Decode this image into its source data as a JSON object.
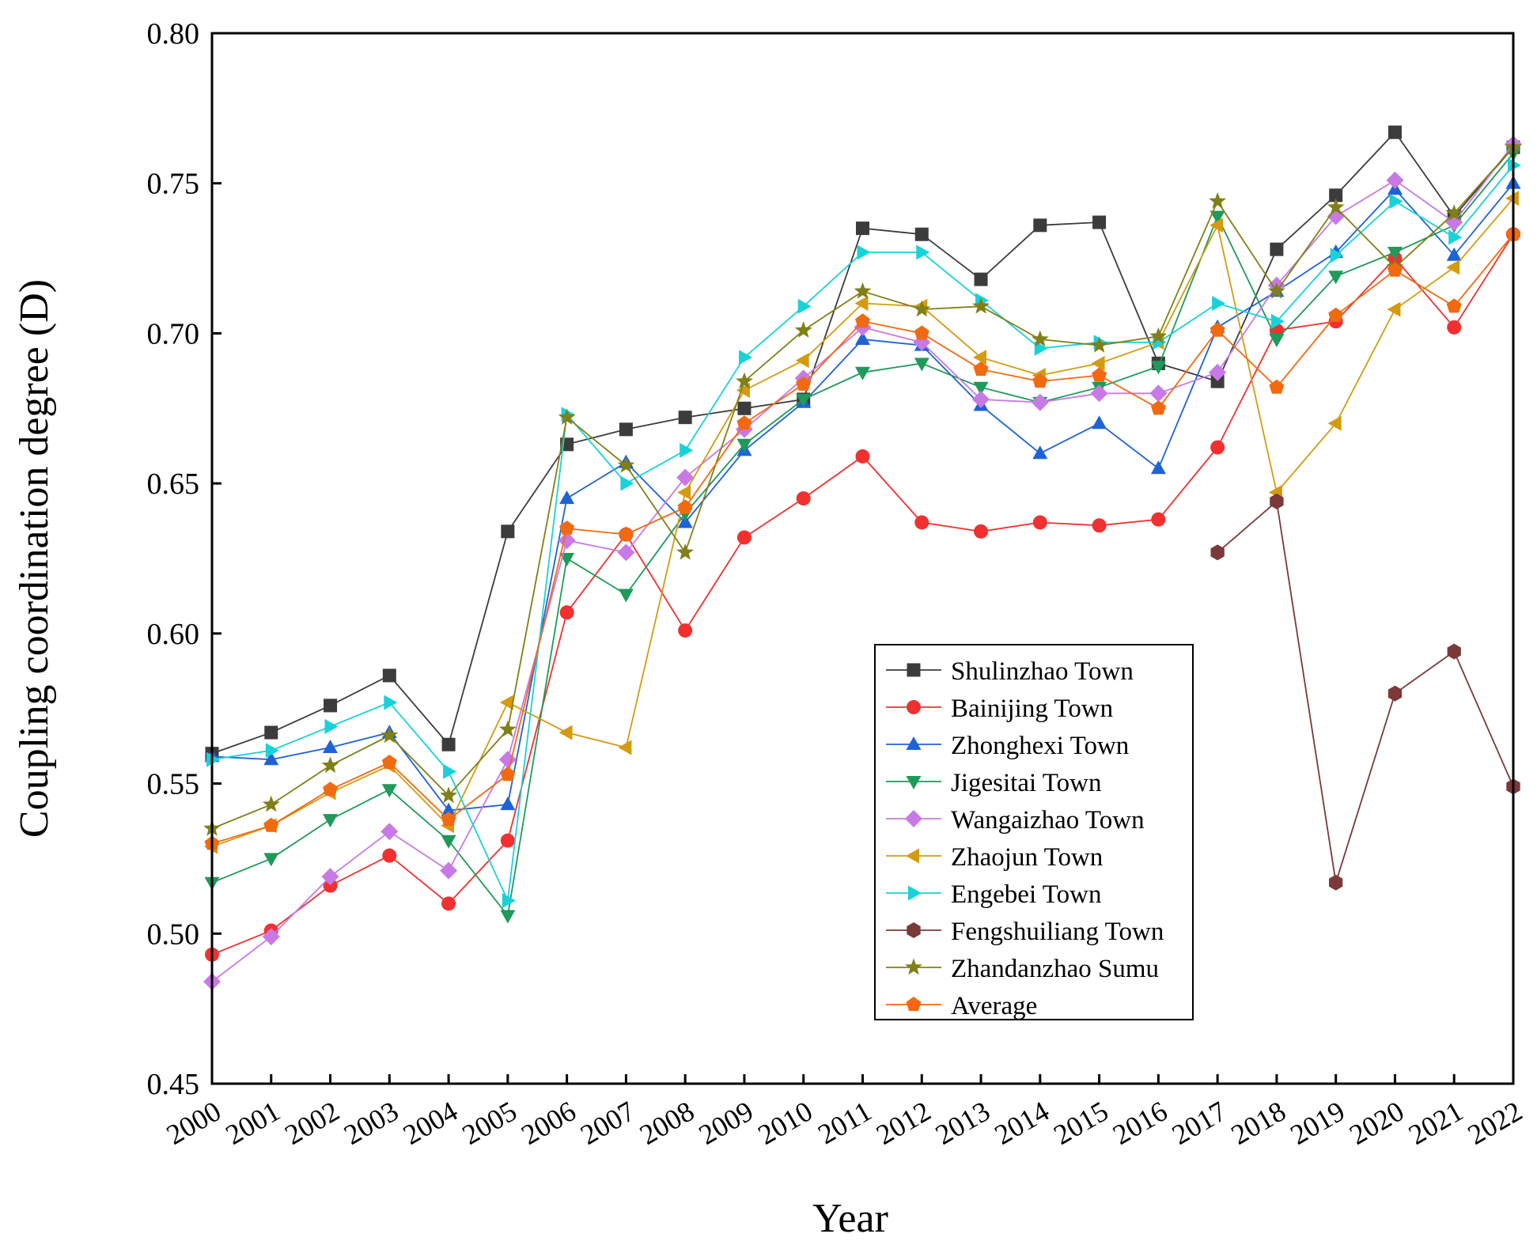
{
  "chart_data": {
    "type": "line",
    "title": "",
    "xlabel": "Year",
    "ylabel": "Coupling coordination degree (D)",
    "ylim": [
      0.45,
      0.8
    ],
    "yticks": [
      "0.45",
      "0.50",
      "0.55",
      "0.60",
      "0.65",
      "0.70",
      "0.75",
      "0.80"
    ],
    "categories": [
      "2000",
      "2001",
      "2002",
      "2003",
      "2004",
      "2005",
      "2006",
      "2007",
      "2008",
      "2009",
      "2010",
      "2011",
      "2012",
      "2013",
      "2014",
      "2015",
      "2016",
      "2017",
      "2018",
      "2019",
      "2020",
      "2021",
      "2022"
    ],
    "legend_position": "bottom-right",
    "series": [
      {
        "name": "Shulinzhao Town",
        "color": "#3c3c3c",
        "marker": "square",
        "values": [
          0.56,
          0.567,
          0.576,
          0.586,
          0.563,
          0.634,
          0.663,
          0.668,
          0.672,
          0.675,
          0.678,
          0.735,
          0.733,
          0.718,
          0.736,
          0.737,
          0.69,
          0.684,
          0.728,
          0.746,
          0.767,
          0.739,
          0.762
        ]
      },
      {
        "name": "Bainijing Town",
        "color": "#f23030",
        "marker": "circle",
        "values": [
          0.493,
          0.501,
          0.516,
          0.526,
          0.51,
          0.531,
          0.607,
          0.633,
          0.601,
          0.632,
          0.645,
          0.659,
          0.637,
          0.634,
          0.637,
          0.636,
          0.638,
          0.662,
          0.701,
          0.704,
          0.725,
          0.702,
          0.733
        ]
      },
      {
        "name": "Zhonghexi Town",
        "color": "#1f62d6",
        "marker": "triangle-up",
        "values": [
          0.559,
          0.558,
          0.562,
          0.567,
          0.541,
          0.543,
          0.645,
          0.657,
          0.637,
          0.661,
          0.677,
          0.698,
          0.696,
          0.676,
          0.66,
          0.67,
          0.655,
          0.702,
          0.714,
          0.727,
          0.748,
          0.726,
          0.75
        ]
      },
      {
        "name": "Jigesitai Town",
        "color": "#1e9a5a",
        "marker": "triangle-down",
        "values": [
          0.517,
          0.525,
          0.538,
          0.548,
          0.531,
          0.506,
          0.625,
          0.613,
          0.64,
          0.663,
          0.678,
          0.687,
          0.69,
          0.682,
          0.677,
          0.682,
          0.689,
          0.739,
          0.698,
          0.719,
          0.727,
          0.736,
          0.76
        ]
      },
      {
        "name": "Wangaizhao Town",
        "color": "#c879e6",
        "marker": "diamond",
        "values": [
          0.484,
          0.499,
          0.519,
          0.534,
          0.521,
          0.558,
          0.631,
          0.627,
          0.652,
          0.668,
          0.685,
          0.702,
          0.697,
          0.678,
          0.677,
          0.68,
          0.68,
          0.687,
          0.716,
          0.739,
          0.751,
          0.737,
          0.763
        ]
      },
      {
        "name": "Zhaojun Town",
        "color": "#d49b10",
        "marker": "triangle-left",
        "values": [
          0.529,
          0.536,
          0.547,
          0.556,
          0.536,
          0.577,
          0.567,
          0.562,
          0.647,
          0.681,
          0.691,
          0.71,
          0.709,
          0.692,
          0.686,
          0.69,
          0.697,
          0.736,
          0.647,
          0.67,
          0.708,
          0.722,
          0.745
        ]
      },
      {
        "name": "Engebei Town",
        "color": "#18d2da",
        "marker": "triangle-right",
        "values": [
          0.558,
          0.561,
          0.569,
          0.577,
          0.554,
          0.511,
          0.673,
          0.65,
          0.661,
          0.692,
          0.709,
          0.727,
          0.727,
          0.711,
          0.695,
          0.697,
          0.697,
          0.71,
          0.704,
          0.726,
          0.744,
          0.732,
          0.756
        ]
      },
      {
        "name": "Fengshuiliang Town",
        "color": "#7a3a3a",
        "marker": "hexagon",
        "values": [
          null,
          null,
          null,
          null,
          null,
          null,
          null,
          null,
          null,
          null,
          null,
          null,
          null,
          null,
          null,
          null,
          null,
          0.627,
          0.644,
          0.517,
          0.58,
          0.594,
          0.549
        ]
      },
      {
        "name": "Zhandanzhao Sumu",
        "color": "#808018",
        "marker": "star",
        "values": [
          0.535,
          0.543,
          0.556,
          0.566,
          0.546,
          0.568,
          0.672,
          0.656,
          0.627,
          0.684,
          0.701,
          0.714,
          0.708,
          0.709,
          0.698,
          0.696,
          0.699,
          0.744,
          0.714,
          0.742,
          0.722,
          0.74,
          0.762
        ]
      },
      {
        "name": "Average",
        "color": "#f26a10",
        "marker": "pentagon",
        "values": [
          0.53,
          0.536,
          0.548,
          0.557,
          0.538,
          0.553,
          0.635,
          0.633,
          0.642,
          0.67,
          0.683,
          0.704,
          0.7,
          0.688,
          0.684,
          0.686,
          0.675,
          0.701,
          0.682,
          0.706,
          0.721,
          0.709,
          0.733
        ]
      }
    ]
  }
}
